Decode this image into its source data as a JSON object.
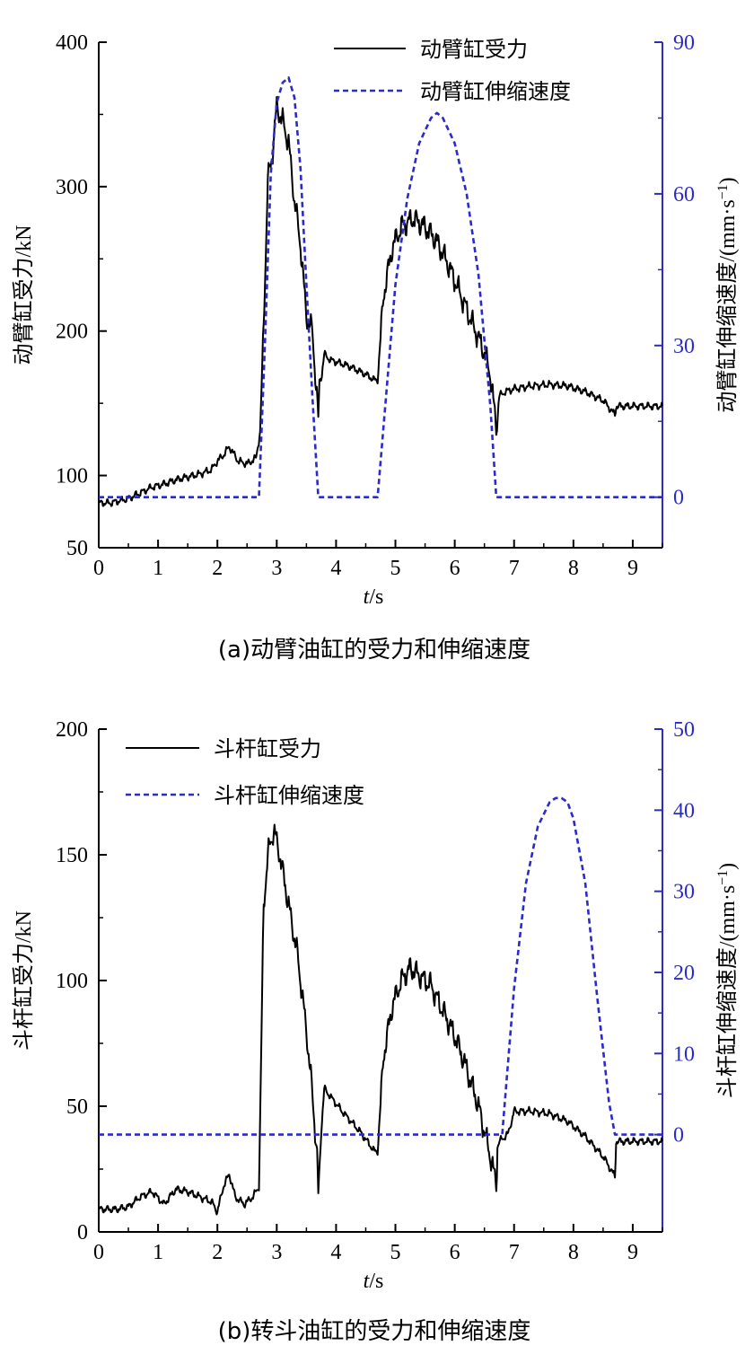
{
  "chart_data": [
    {
      "type": "line",
      "caption": "(a)动臂油缸的受力和伸缩速度",
      "xlabel_italic": "t",
      "xlabel_rest": "/s",
      "ylabel_left": "动臂缸受力/kN",
      "ylabel_right_main": "动臂缸伸缩速度/(mm·s",
      "ylabel_right_sup": "−1",
      "ylabel_right_end": ")",
      "xlim": [
        0,
        9.5
      ],
      "ylim_left": [
        50,
        400
      ],
      "ylim_right": [
        -10,
        90
      ],
      "x_ticks": [
        "0",
        "1",
        "2",
        "3",
        "4",
        "5",
        "6",
        "7",
        "8",
        "9"
      ],
      "y_left_ticks": [
        "50",
        "100",
        "200",
        "300",
        "400"
      ],
      "y_left_tick_values": [
        50,
        100,
        200,
        300,
        400
      ],
      "y_right_ticks": [
        "0",
        "30",
        "60",
        "90"
      ],
      "y_right_tick_values": [
        0,
        30,
        60,
        90
      ],
      "legend_position": "top-right",
      "series": [
        {
          "name": "动臂缸受力",
          "axis": "left",
          "color": "#000000",
          "style": "solid",
          "noise": 1,
          "x": [
            0,
            0.2,
            0.5,
            0.7,
            0.9,
            1.1,
            1.3,
            1.5,
            1.7,
            1.9,
            2.0,
            2.1,
            2.2,
            2.35,
            2.5,
            2.65,
            2.72,
            2.78,
            2.85,
            2.92,
            3.0,
            3.1,
            3.2,
            3.3,
            3.4,
            3.5,
            3.6,
            3.7,
            3.72,
            3.76,
            3.8,
            3.9,
            4.2,
            4.5,
            4.65,
            4.7,
            4.8,
            4.95,
            5.1,
            5.3,
            5.5,
            5.7,
            5.9,
            6.1,
            6.3,
            6.5,
            6.6,
            6.7,
            6.75,
            6.85,
            7.0,
            7.3,
            7.6,
            7.9,
            8.2,
            8.5,
            8.7,
            8.72,
            9.0,
            9.5
          ],
          "y": [
            81,
            81,
            84,
            88,
            92,
            94,
            97,
            99,
            101,
            104,
            110,
            114,
            120,
            110,
            108,
            112,
            130,
            205,
            305,
            320,
            355,
            345,
            330,
            290,
            260,
            210,
            200,
            140,
            165,
            170,
            184,
            180,
            176,
            170,
            166,
            166,
            225,
            258,
            272,
            278,
            272,
            262,
            245,
            225,
            205,
            185,
            170,
            133,
            155,
            158,
            160,
            162,
            163,
            162,
            158,
            152,
            142,
            148,
            148,
            148
          ]
        },
        {
          "name": "动臂缸伸缩速度",
          "axis": "right",
          "color": "#2b2bc8",
          "style": "dashed",
          "noise": 0,
          "x": [
            0,
            2.7,
            2.8,
            2.9,
            3.0,
            3.1,
            3.2,
            3.3,
            3.4,
            3.5,
            3.6,
            3.7,
            4.7,
            4.8,
            4.9,
            5.0,
            5.2,
            5.4,
            5.6,
            5.7,
            5.8,
            6.0,
            6.2,
            6.4,
            6.6,
            6.7,
            9.5
          ],
          "y": [
            0,
            0,
            30,
            64,
            78,
            82,
            83,
            79,
            65,
            42,
            20,
            0,
            0,
            14,
            28,
            42,
            59,
            70,
            75,
            76,
            75,
            70,
            60,
            44,
            18,
            0,
            0
          ]
        }
      ]
    },
    {
      "type": "line",
      "caption": "(b)转斗油缸的受力和伸缩速度",
      "xlabel_italic": "t",
      "xlabel_rest": "/s",
      "ylabel_left": "斗杆缸受力/kN",
      "ylabel_right_main": "斗杆缸伸缩速度/(mm·s",
      "ylabel_right_sup": "−1",
      "ylabel_right_end": ")",
      "xlim": [
        0,
        9.5
      ],
      "ylim_left": [
        0,
        200
      ],
      "ylim_right": [
        -12,
        50
      ],
      "x_ticks": [
        "0",
        "1",
        "2",
        "3",
        "4",
        "5",
        "6",
        "7",
        "8",
        "9"
      ],
      "y_left_ticks": [
        "0",
        "50",
        "100",
        "150",
        "200"
      ],
      "y_left_tick_values": [
        0,
        50,
        100,
        150,
        200
      ],
      "y_right_ticks": [
        "0",
        "10",
        "20",
        "30",
        "40",
        "50"
      ],
      "y_right_tick_values": [
        0,
        10,
        20,
        30,
        40,
        50
      ],
      "legend_position": "top-left",
      "series": [
        {
          "name": "斗杆缸受力",
          "axis": "left",
          "color": "#000000",
          "style": "solid",
          "noise": 1,
          "x": [
            0,
            0.3,
            0.5,
            0.7,
            0.9,
            1.1,
            1.3,
            1.5,
            1.7,
            1.9,
            2.0,
            2.1,
            2.2,
            2.3,
            2.45,
            2.6,
            2.7,
            2.73,
            2.78,
            2.85,
            2.95,
            3.05,
            3.2,
            3.35,
            3.5,
            3.6,
            3.68,
            3.7,
            3.75,
            3.8,
            3.9,
            4.1,
            4.4,
            4.65,
            4.7,
            4.8,
            4.95,
            5.1,
            5.25,
            5.4,
            5.6,
            5.8,
            6.0,
            6.2,
            6.4,
            6.6,
            6.7,
            6.72,
            6.8,
            6.9,
            7.0,
            7.3,
            7.6,
            7.9,
            8.2,
            8.5,
            8.7,
            8.72,
            9.0,
            9.5
          ],
          "y": [
            9,
            9,
            10,
            14,
            16,
            11,
            17,
            16,
            14,
            12,
            8,
            18,
            23,
            14,
            11,
            14,
            18,
            60,
            130,
            150,
            160,
            150,
            130,
            110,
            80,
            55,
            30,
            15,
            40,
            57,
            54,
            48,
            40,
            32,
            32,
            70,
            90,
            100,
            105,
            102,
            98,
            88,
            78,
            65,
            50,
            30,
            19,
            35,
            37,
            39,
            48,
            48,
            47,
            44,
            38,
            30,
            22,
            36,
            36,
            36
          ]
        },
        {
          "name": "斗杆缸伸缩速度",
          "axis": "right",
          "color": "#2b2bc8",
          "style": "dashed",
          "noise": 0,
          "x": [
            0,
            6.8,
            6.9,
            7.0,
            7.2,
            7.4,
            7.6,
            7.7,
            7.8,
            7.9,
            8.0,
            8.2,
            8.4,
            8.6,
            8.7,
            9.5
          ],
          "y": [
            0,
            0,
            9,
            18,
            31,
            38,
            41,
            41.5,
            41.5,
            41,
            39,
            31,
            17,
            4,
            0,
            0
          ]
        }
      ]
    }
  ]
}
